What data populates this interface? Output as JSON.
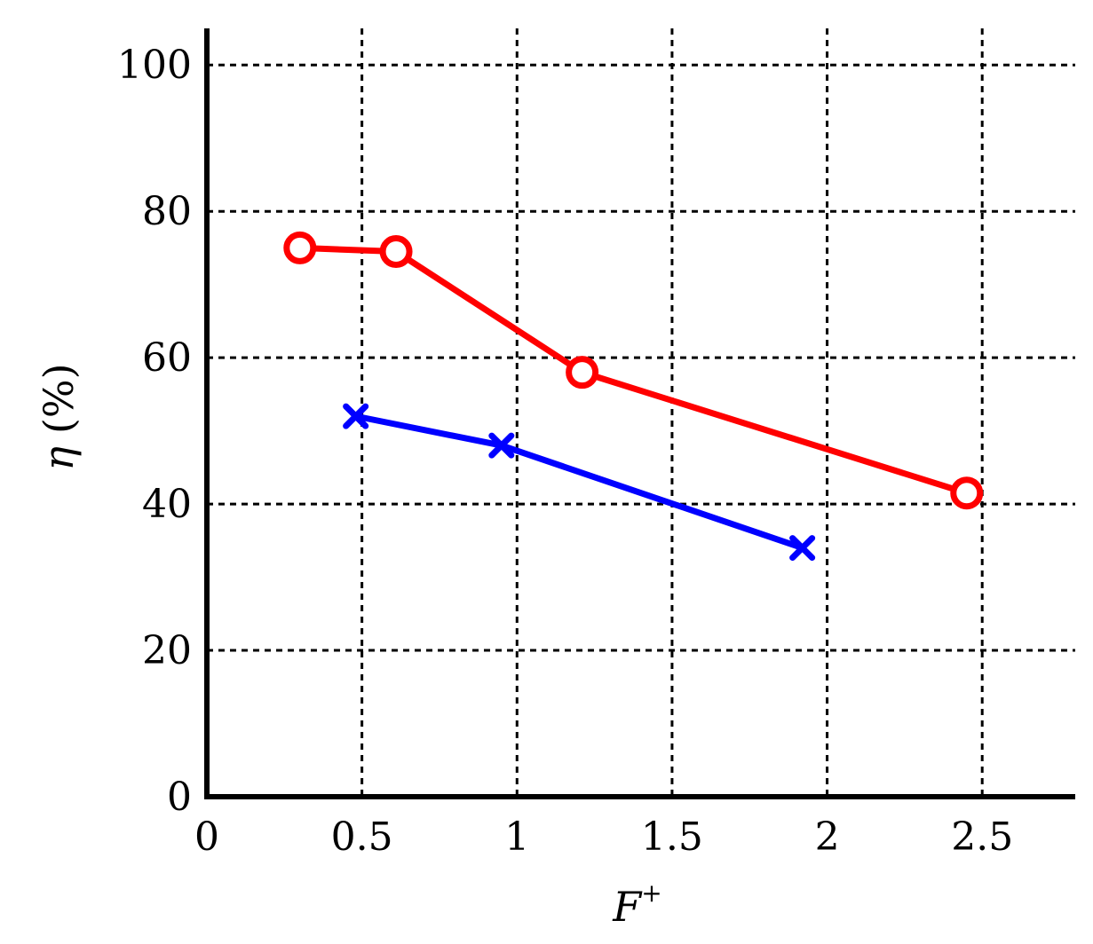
{
  "chart_data": {
    "type": "line",
    "title": "",
    "xlabel": "F",
    "xlabel_superscript": "+",
    "ylabel_symbol": "η",
    "ylabel_unit": "(%)",
    "xlim": [
      0,
      2.8
    ],
    "ylim": [
      0,
      105
    ],
    "x_ticks": [
      0,
      0.5,
      1,
      1.5,
      2,
      2.5
    ],
    "x_tick_labels": [
      "0",
      "0.5",
      "1",
      "1.5",
      "2",
      "2.5"
    ],
    "y_ticks": [
      0,
      20,
      40,
      60,
      80,
      100
    ],
    "y_tick_labels": [
      "0",
      "20",
      "40",
      "60",
      "80",
      "100"
    ],
    "grid": true,
    "series": [
      {
        "color": "#ff0000",
        "marker": "circle",
        "x": [
          0.3,
          0.61,
          1.21,
          2.45
        ],
        "y": [
          75,
          74.5,
          58,
          41.5
        ]
      },
      {
        "color": "#0000ff",
        "marker": "x",
        "x": [
          0.48,
          0.95,
          1.92
        ],
        "y": [
          52,
          48,
          34
        ]
      }
    ]
  }
}
